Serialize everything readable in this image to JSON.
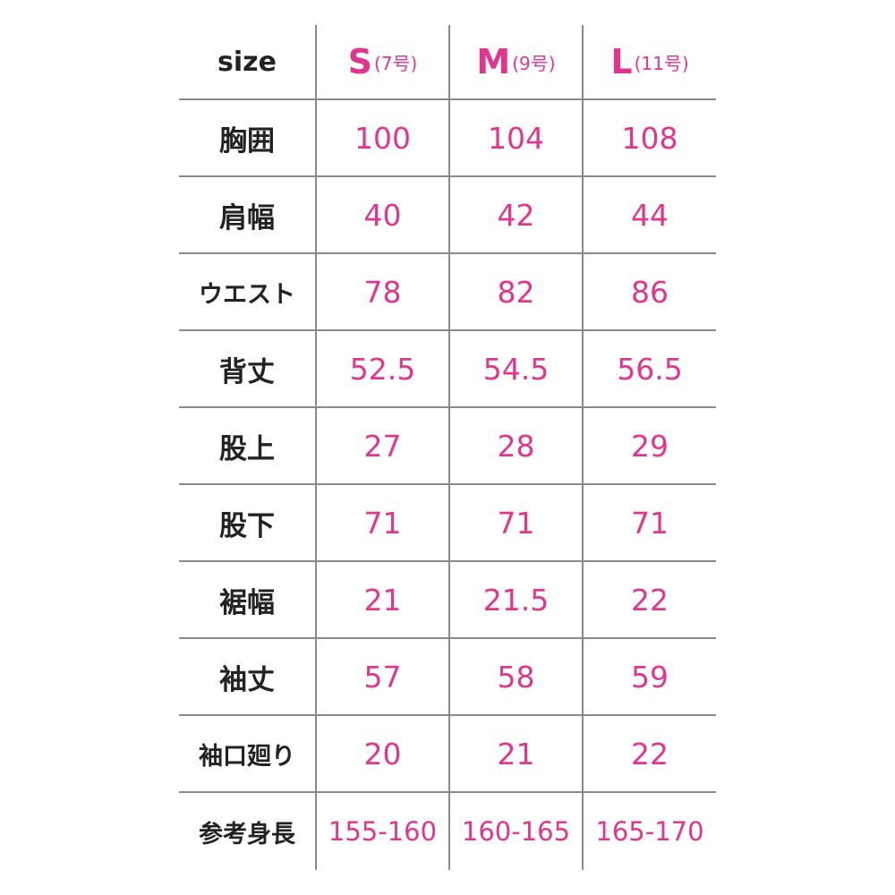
{
  "header": {
    "label": "size",
    "sizes": [
      {
        "size": "S",
        "number": "(7号)"
      },
      {
        "size": "M",
        "number": "(9号)"
      },
      {
        "size": "L",
        "number": "(11号)"
      }
    ]
  },
  "rows": [
    {
      "label": "胸囲",
      "values": [
        "100",
        "104",
        "108"
      ]
    },
    {
      "label": "肩幅",
      "values": [
        "40",
        "42",
        "44"
      ]
    },
    {
      "label": "ウエスト",
      "values": [
        "78",
        "82",
        "86"
      ]
    },
    {
      "label": "背丈",
      "values": [
        "52.5",
        "54.5",
        "56.5"
      ]
    },
    {
      "label": "股上",
      "values": [
        "27",
        "28",
        "29"
      ]
    },
    {
      "label": "股下",
      "values": [
        "71",
        "71",
        "71"
      ]
    },
    {
      "label": "裾幅",
      "values": [
        "21",
        "21.5",
        "22"
      ]
    },
    {
      "label": "袖丈",
      "values": [
        "57",
        "58",
        "59"
      ]
    },
    {
      "label": "袖口廻り",
      "values": [
        "20",
        "21",
        "22"
      ]
    },
    {
      "label": "参考身長",
      "values": [
        "155-160",
        "160-165",
        "165-170"
      ]
    }
  ],
  "colors": {
    "accent": "#e0368f",
    "text": "#222222",
    "rule": "#8a8a8a"
  }
}
